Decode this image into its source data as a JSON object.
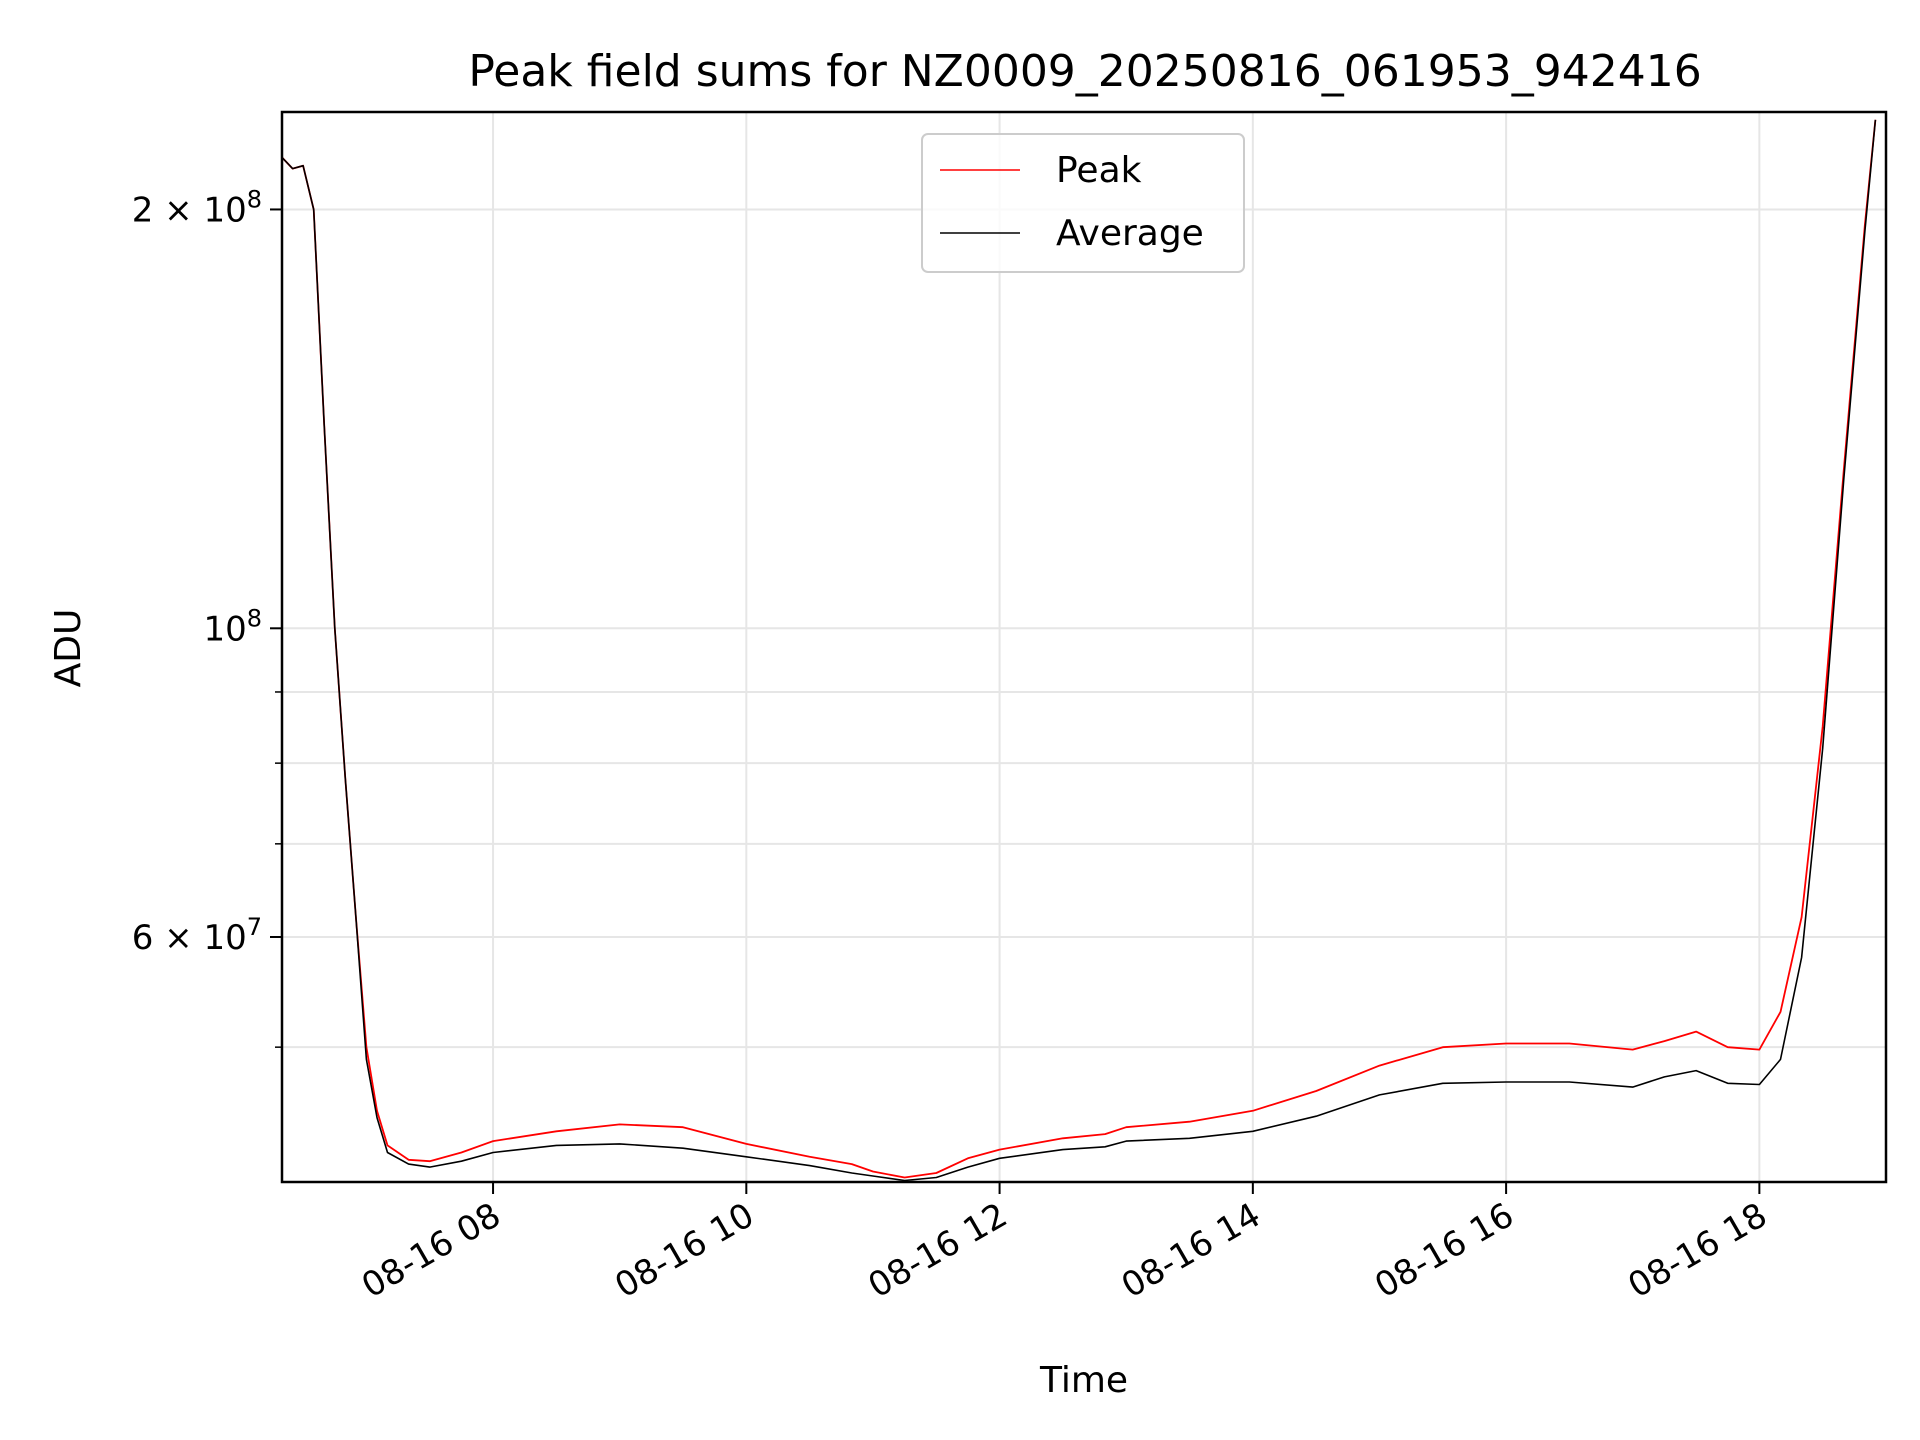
{
  "chart_data": {
    "type": "line",
    "title": "Peak field sums for NZ0009_20250816_061953_942416",
    "xlabel": "Time",
    "ylabel": "ADU",
    "yscale": "log",
    "xlim": [
      "2025-08-16T06:20",
      "2025-08-16T19:00"
    ],
    "ylim": [
      40000000,
      235000000
    ],
    "grid": true,
    "legend_position": "upper-center",
    "x_ticks": [
      {
        "time": "2025-08-16T08:00",
        "label": "08-16 08"
      },
      {
        "time": "2025-08-16T10:00",
        "label": "08-16 10"
      },
      {
        "time": "2025-08-16T12:00",
        "label": "08-16 12"
      },
      {
        "time": "2025-08-16T14:00",
        "label": "08-16 14"
      },
      {
        "time": "2025-08-16T16:00",
        "label": "08-16 16"
      },
      {
        "time": "2025-08-16T18:00",
        "label": "08-16 18"
      }
    ],
    "y_major_ticks": [
      {
        "value": 60000000,
        "base": "6 × 10",
        "exp": "7"
      },
      {
        "value": 100000000,
        "base": "10",
        "exp": "8"
      },
      {
        "value": 200000000,
        "base": "2 × 10",
        "exp": "8"
      }
    ],
    "y_minor_ticks": [
      50000000,
      70000000,
      80000000,
      90000000
    ],
    "series": [
      {
        "name": "Peak",
        "color": "#ff0000",
        "x": [
          "2025-08-16T06:20",
          "2025-08-16T06:25",
          "2025-08-16T06:30",
          "2025-08-16T06:35",
          "2025-08-16T06:40",
          "2025-08-16T06:45",
          "2025-08-16T06:50",
          "2025-08-16T06:55",
          "2025-08-16T07:00",
          "2025-08-16T07:05",
          "2025-08-16T07:10",
          "2025-08-16T07:20",
          "2025-08-16T07:30",
          "2025-08-16T07:45",
          "2025-08-16T08:00",
          "2025-08-16T08:30",
          "2025-08-16T09:00",
          "2025-08-16T09:30",
          "2025-08-16T10:00",
          "2025-08-16T10:30",
          "2025-08-16T10:50",
          "2025-08-16T11:00",
          "2025-08-16T11:15",
          "2025-08-16T11:30",
          "2025-08-16T11:45",
          "2025-08-16T12:00",
          "2025-08-16T12:30",
          "2025-08-16T12:50",
          "2025-08-16T13:00",
          "2025-08-16T13:30",
          "2025-08-16T14:00",
          "2025-08-16T14:30",
          "2025-08-16T15:00",
          "2025-08-16T15:30",
          "2025-08-16T16:00",
          "2025-08-16T16:30",
          "2025-08-16T17:00",
          "2025-08-16T17:15",
          "2025-08-16T17:30",
          "2025-08-16T17:45",
          "2025-08-16T18:00",
          "2025-08-16T18:10",
          "2025-08-16T18:20",
          "2025-08-16T18:30",
          "2025-08-16T18:40",
          "2025-08-16T18:50",
          "2025-08-16T18:55"
        ],
        "values": [
          218000000,
          214000000,
          215000000,
          200000000,
          140000000,
          100000000,
          78000000,
          62000000,
          50000000,
          45000000,
          42500000,
          41500000,
          41400000,
          42000000,
          42800000,
          43500000,
          44000000,
          43800000,
          42600000,
          41700000,
          41200000,
          40700000,
          40300000,
          40600000,
          41600000,
          42200000,
          43000000,
          43300000,
          43800000,
          44200000,
          45000000,
          46500000,
          48500000,
          50000000,
          50300000,
          50300000,
          49800000,
          50500000,
          51300000,
          50000000,
          49800000,
          53000000,
          62000000,
          85000000,
          130000000,
          195000000,
          232000000
        ]
      },
      {
        "name": "Average",
        "color": "#000000",
        "x": [
          "2025-08-16T06:20",
          "2025-08-16T06:25",
          "2025-08-16T06:30",
          "2025-08-16T06:35",
          "2025-08-16T06:40",
          "2025-08-16T06:45",
          "2025-08-16T06:50",
          "2025-08-16T06:55",
          "2025-08-16T07:00",
          "2025-08-16T07:05",
          "2025-08-16T07:10",
          "2025-08-16T07:20",
          "2025-08-16T07:30",
          "2025-08-16T07:45",
          "2025-08-16T08:00",
          "2025-08-16T08:30",
          "2025-08-16T09:00",
          "2025-08-16T09:30",
          "2025-08-16T10:00",
          "2025-08-16T10:30",
          "2025-08-16T10:50",
          "2025-08-16T11:00",
          "2025-08-16T11:15",
          "2025-08-16T11:30",
          "2025-08-16T11:45",
          "2025-08-16T12:00",
          "2025-08-16T12:30",
          "2025-08-16T12:50",
          "2025-08-16T13:00",
          "2025-08-16T13:30",
          "2025-08-16T14:00",
          "2025-08-16T14:30",
          "2025-08-16T15:00",
          "2025-08-16T15:30",
          "2025-08-16T16:00",
          "2025-08-16T16:30",
          "2025-08-16T17:00",
          "2025-08-16T17:15",
          "2025-08-16T17:30",
          "2025-08-16T17:45",
          "2025-08-16T18:00",
          "2025-08-16T18:10",
          "2025-08-16T18:20",
          "2025-08-16T18:30",
          "2025-08-16T18:40",
          "2025-08-16T18:50",
          "2025-08-16T18:55"
        ],
        "values": [
          218000000,
          214000000,
          215000000,
          200000000,
          140000000,
          100000000,
          78000000,
          62000000,
          49000000,
          44500000,
          42000000,
          41200000,
          41000000,
          41400000,
          42000000,
          42500000,
          42600000,
          42300000,
          41700000,
          41100000,
          40600000,
          40400000,
          40100000,
          40300000,
          41000000,
          41600000,
          42200000,
          42400000,
          42800000,
          43000000,
          43500000,
          44600000,
          46200000,
          47100000,
          47200000,
          47200000,
          46800000,
          47600000,
          48100000,
          47100000,
          47000000,
          49000000,
          58000000,
          82000000,
          128000000,
          193000000,
          232000000
        ]
      }
    ]
  }
}
